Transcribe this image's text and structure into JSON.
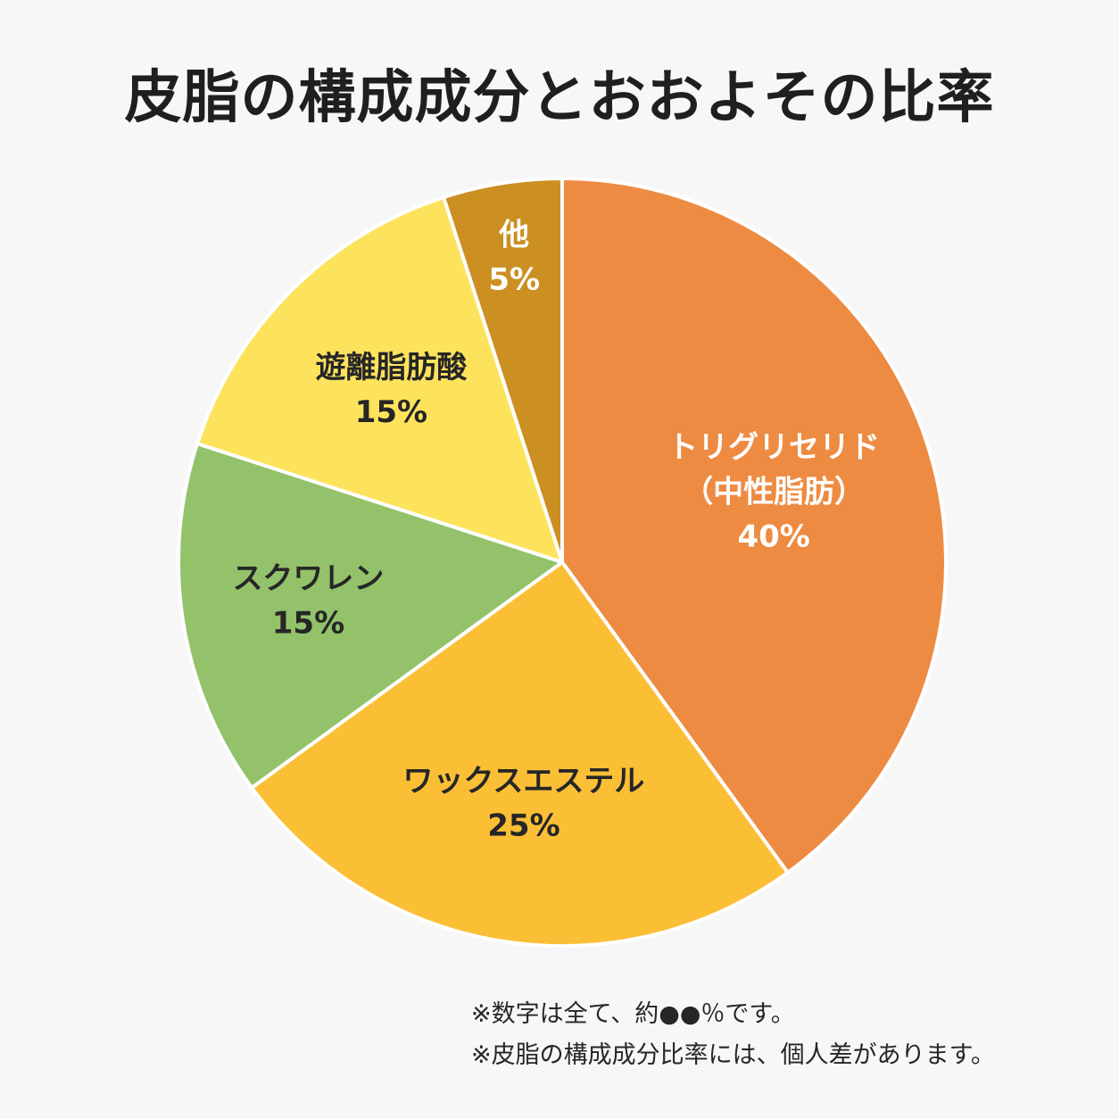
{
  "page": {
    "background": "#f7f7f7"
  },
  "chart_data": {
    "type": "pie",
    "title": "皮脂の構成成分とおおよその比率",
    "start_angle_deg": 0,
    "direction": "clockwise",
    "slices": [
      {
        "name": "トリグリセリド",
        "sublabel": "（中性脂肪）",
        "value": 40,
        "value_label": "40%",
        "color": "#ee8b42",
        "text_color": "#ffffff"
      },
      {
        "name": "ワックスエステル",
        "sublabel": "",
        "value": 25,
        "value_label": "25%",
        "color": "#fbbf36",
        "text_color": "#262626"
      },
      {
        "name": "スクワレン",
        "sublabel": "",
        "value": 15,
        "value_label": "15%",
        "color": "#93c26a",
        "text_color": "#262626"
      },
      {
        "name": "遊離脂肪酸",
        "sublabel": "",
        "value": 15,
        "value_label": "15%",
        "color": "#fde35c",
        "text_color": "#262626"
      },
      {
        "name": "他",
        "sublabel": "",
        "value": 5,
        "value_label": "5%",
        "color": "#cb8f22",
        "text_color": "#ffffff"
      }
    ],
    "legend": "none"
  },
  "notes": {
    "note1": "※数字は全て、約●●％です。",
    "note2": "※皮脂の構成成分比率には、個人差があります。"
  }
}
